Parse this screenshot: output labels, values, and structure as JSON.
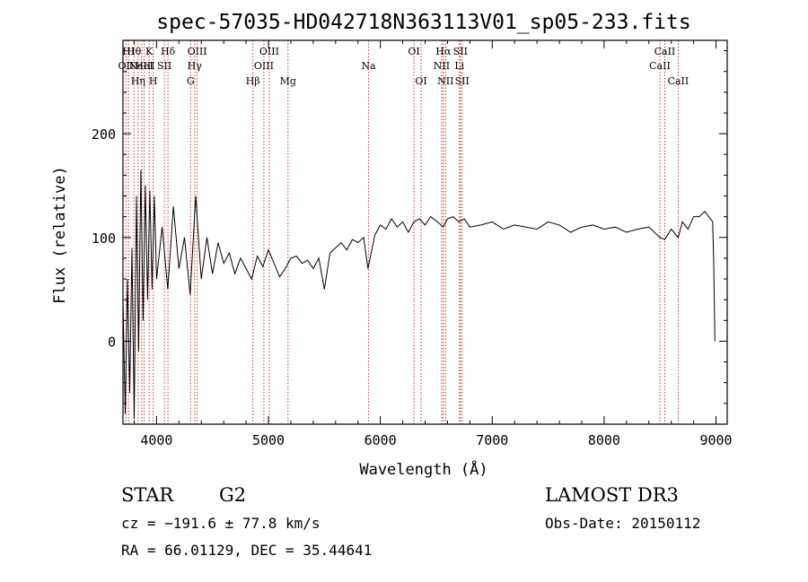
{
  "chart_data": {
    "type": "line",
    "title": "spec-57035-HD042718N363113V01_sp05-233.fits",
    "xlabel": "Wavelength (Å)",
    "ylabel": "Flux (relative)",
    "xlim": [
      3700,
      9100
    ],
    "ylim": [
      -80,
      290
    ],
    "xticks": [
      4000,
      5000,
      6000,
      7000,
      8000,
      9000
    ],
    "yticks": [
      0,
      100,
      200
    ],
    "grid": false,
    "series": [
      {
        "x": [
          3700,
          3720,
          3740,
          3760,
          3780,
          3800,
          3820,
          3840,
          3860,
          3880,
          3900,
          3920,
          3940,
          3960,
          3980,
          4000,
          4050,
          4100,
          4150,
          4200,
          4250,
          4300,
          4350,
          4400,
          4450,
          4500,
          4550,
          4600,
          4650,
          4700,
          4750,
          4800,
          4850,
          4900,
          4950,
          5000,
          5050,
          5100,
          5150,
          5200,
          5250,
          5300,
          5350,
          5400,
          5450,
          5500,
          5550,
          5600,
          5650,
          5700,
          5750,
          5800,
          5850,
          5890,
          5950,
          6000,
          6050,
          6100,
          6150,
          6200,
          6250,
          6300,
          6350,
          6400,
          6450,
          6500,
          6563,
          6600,
          6650,
          6700,
          6750,
          6800,
          6900,
          7000,
          7100,
          7200,
          7300,
          7400,
          7500,
          7600,
          7700,
          7800,
          7900,
          8000,
          8100,
          8200,
          8300,
          8400,
          8498,
          8542,
          8600,
          8662,
          8700,
          8750,
          8800,
          8850,
          8900,
          8950,
          8970,
          8980,
          8990
        ],
        "y": [
          40,
          -70,
          60,
          -50,
          90,
          -75,
          140,
          -10,
          165,
          20,
          150,
          40,
          145,
          50,
          140,
          60,
          110,
          50,
          130,
          70,
          100,
          45,
          140,
          60,
          100,
          65,
          95,
          75,
          85,
          65,
          80,
          70,
          60,
          82,
          72,
          88,
          75,
          62,
          70,
          80,
          82,
          75,
          78,
          70,
          80,
          50,
          85,
          90,
          95,
          88,
          98,
          95,
          100,
          70,
          102,
          112,
          108,
          118,
          110,
          115,
          105,
          115,
          118,
          112,
          120,
          116,
          110,
          118,
          120,
          115,
          118,
          110,
          112,
          115,
          108,
          112,
          110,
          108,
          115,
          112,
          105,
          110,
          112,
          108,
          110,
          105,
          108,
          110,
          100,
          98,
          108,
          100,
          115,
          108,
          120,
          120,
          125,
          118,
          115,
          75,
          0
        ]
      }
    ],
    "lines": [
      {
        "x": 3727,
        "label": "OII",
        "row": 2
      },
      {
        "x": 3750,
        "label": "HI",
        "row": 1
      },
      {
        "x": 3798,
        "label": "Hθ",
        "row": 1
      },
      {
        "x": 3835,
        "label": "Hη",
        "row": 3
      },
      {
        "x": 3868,
        "label": "NeIII",
        "row": 2
      },
      {
        "x": 3889,
        "label": "HeI",
        "row": 2
      },
      {
        "x": 3934,
        "label": "K",
        "row": 1
      },
      {
        "x": 3970,
        "label": "H",
        "row": 3
      },
      {
        "x": 4070,
        "label": "SII",
        "row": 2
      },
      {
        "x": 4102,
        "label": "Hδ",
        "row": 1
      },
      {
        "x": 4304,
        "label": "G",
        "row": 3
      },
      {
        "x": 4340,
        "label": "Hγ",
        "row": 2
      },
      {
        "x": 4363,
        "label": "OIII",
        "row": 1
      },
      {
        "x": 4861,
        "label": "Hβ",
        "row": 3
      },
      {
        "x": 4959,
        "label": "OIII",
        "row": 2
      },
      {
        "x": 5007,
        "label": "OIII",
        "row": 1
      },
      {
        "x": 5175,
        "label": "Mg",
        "row": 3
      },
      {
        "x": 5894,
        "label": "Na",
        "row": 2
      },
      {
        "x": 6300,
        "label": "OI",
        "row": 1
      },
      {
        "x": 6364,
        "label": "OI",
        "row": 3
      },
      {
        "x": 6548,
        "label": "NII",
        "row": 2
      },
      {
        "x": 6563,
        "label": "Hα",
        "row": 1
      },
      {
        "x": 6583,
        "label": "NII",
        "row": 3
      },
      {
        "x": 6707,
        "label": "Li",
        "row": 2
      },
      {
        "x": 6716,
        "label": "SII",
        "row": 1
      },
      {
        "x": 6731,
        "label": "SII",
        "row": 3
      },
      {
        "x": 8498,
        "label": "CaII",
        "row": 2
      },
      {
        "x": 8542,
        "label": "CaII",
        "row": 1
      },
      {
        "x": 8662,
        "label": "CaII",
        "row": 3
      }
    ]
  },
  "info": {
    "obj_class": "STAR",
    "subclass": "G2",
    "survey": "LAMOST DR3",
    "cz": "cz = −191.6 ± 77.8 km/s",
    "obs_date": "Obs-Date: 20150112",
    "coords": "RA =  66.01129, DEC =  35.44641"
  },
  "colors": {
    "spectrum": "#000000",
    "line_markers": "#c0392b",
    "axes": "#000000"
  }
}
